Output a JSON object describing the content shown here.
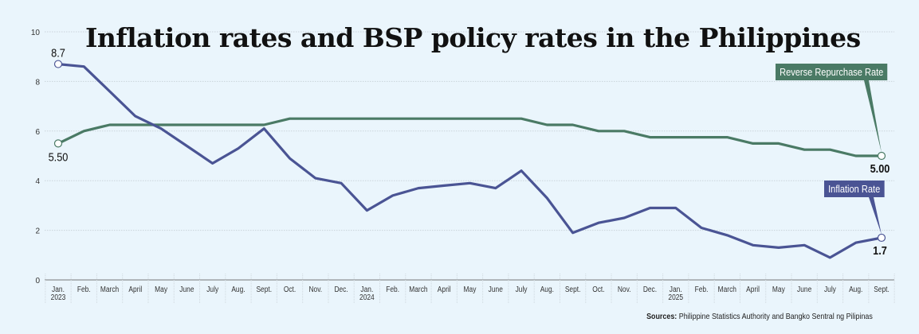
{
  "chart_data": {
    "type": "line",
    "title": "Inflation rates and BSP policy rates in the Philippines",
    "xlabel": "",
    "ylabel": "",
    "ylim": [
      0,
      10
    ],
    "yticks": [
      0,
      2,
      4,
      6,
      8,
      10
    ],
    "grid": true,
    "categories": [
      "Jan.|2023",
      "Feb.",
      "March",
      "April",
      "May",
      "June",
      "July",
      "Aug.",
      "Sept.",
      "Oct.",
      "Nov.",
      "Dec.",
      "Jan.|2024",
      "Feb.",
      "March",
      "April",
      "May",
      "June",
      "July",
      "Aug.",
      "Sept.",
      "Oct.",
      "Nov.",
      "Dec.",
      "Jan.|2025",
      "Feb.",
      "March",
      "April",
      "May",
      "June",
      "July",
      "Aug.",
      "Sept."
    ],
    "series": [
      {
        "name": "Reverse Repurchase Rate",
        "color": "#4a7a65",
        "values": [
          5.5,
          6.0,
          6.25,
          6.25,
          6.25,
          6.25,
          6.25,
          6.25,
          6.25,
          6.5,
          6.5,
          6.5,
          6.5,
          6.5,
          6.5,
          6.5,
          6.5,
          6.5,
          6.5,
          6.25,
          6.25,
          6.0,
          6.0,
          5.75,
          5.75,
          5.75,
          5.75,
          5.5,
          5.5,
          5.25,
          5.25,
          5.0,
          5.0
        ],
        "start_label": "5.50",
        "end_label": "5.00"
      },
      {
        "name": "Inflation Rate",
        "color": "#4a5494",
        "values": [
          8.7,
          8.6,
          7.6,
          6.6,
          6.1,
          5.4,
          4.7,
          5.3,
          6.1,
          4.9,
          4.1,
          3.9,
          2.8,
          3.4,
          3.7,
          3.8,
          3.9,
          3.7,
          4.4,
          3.3,
          1.9,
          2.3,
          2.5,
          2.9,
          2.9,
          2.1,
          1.8,
          1.4,
          1.3,
          1.4,
          0.9,
          1.5,
          1.7
        ],
        "start_label": "8.7",
        "end_label": "1.7"
      }
    ],
    "legend": "callouts-right"
  },
  "labels": {
    "rrp_tag": "Reverse Repurchase Rate",
    "inflation_tag": "Inflation Rate"
  },
  "sources": {
    "prefix": "Sources:",
    "text": " Philippine Statistics Authority and Bangko Sentral ng Pilipinas"
  }
}
